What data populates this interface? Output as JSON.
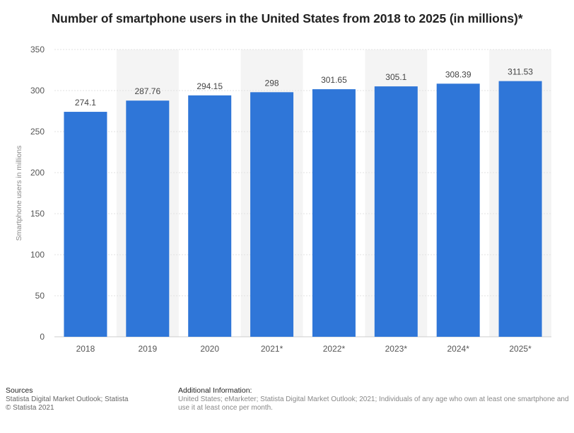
{
  "chart_data": {
    "type": "bar",
    "title": "Number of smartphone users in the United States from 2018 to 2025 (in millions)*",
    "categories": [
      "2018",
      "2019",
      "2020",
      "2021*",
      "2022*",
      "2023*",
      "2024*",
      "2025*"
    ],
    "values": [
      274.1,
      287.76,
      294.15,
      298,
      301.65,
      305.1,
      308.39,
      311.53
    ],
    "value_labels": [
      "274.1",
      "287.76",
      "294.15",
      "298",
      "301.65",
      "305.1",
      "308.39",
      "311.53"
    ],
    "xlabel": "",
    "ylabel": "Smartphone users in millions",
    "ylim": [
      0,
      350
    ],
    "yticks": [
      0,
      50,
      100,
      150,
      200,
      250,
      300,
      350
    ],
    "grid": true,
    "bar_color": "#2f76d8",
    "stripe_color": "#f4f4f4"
  },
  "footer": {
    "sources_heading": "Sources",
    "sources_line1": "Statista Digital Market Outlook; Statista",
    "sources_line2": "© Statista 2021",
    "info_heading": "Additional Information:",
    "info_text": "United States; eMarketer; Statista Digital Market Outlook; 2021; Individuals of any age who own at least one smartphone and use it at least once per month."
  }
}
